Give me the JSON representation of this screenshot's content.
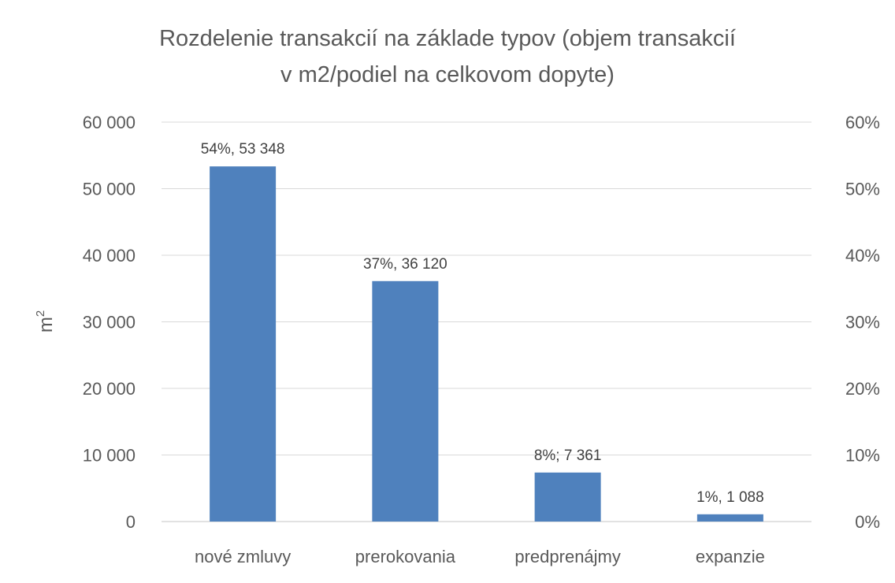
{
  "chart_data": {
    "type": "bar",
    "title_lines": [
      "Rozdelenie transakcií na základe typov (objem transakcií",
      "v m2/podiel na celkovom dopyte)"
    ],
    "categories": [
      "nové zmluvy",
      "prerokovania",
      "predprenájmy",
      "expanzie"
    ],
    "series": [
      {
        "values": [
          53348,
          36120,
          7361,
          1088
        ],
        "shares": [
          0.54,
          0.37,
          0.08,
          0.01
        ],
        "color": "#4f81bd"
      }
    ],
    "data_labels": [
      "54%, 53 348",
      "37%, 36 120",
      "8%; 7 361",
      "1%, 1 088"
    ],
    "ylabel": "m",
    "ylabel_superscript": "2",
    "ylim": [
      0,
      60000
    ],
    "y_ticks": [
      "0",
      "10 000",
      "20 000",
      "30 000",
      "40 000",
      "50 000",
      "60 000"
    ],
    "y2lim": [
      0,
      0.6
    ],
    "y2_ticks": [
      "0%",
      "10%",
      "20%",
      "30%",
      "40%",
      "50%",
      "60%"
    ],
    "grid": true,
    "legend": "none",
    "gridline_color": "#d9d9d9"
  }
}
